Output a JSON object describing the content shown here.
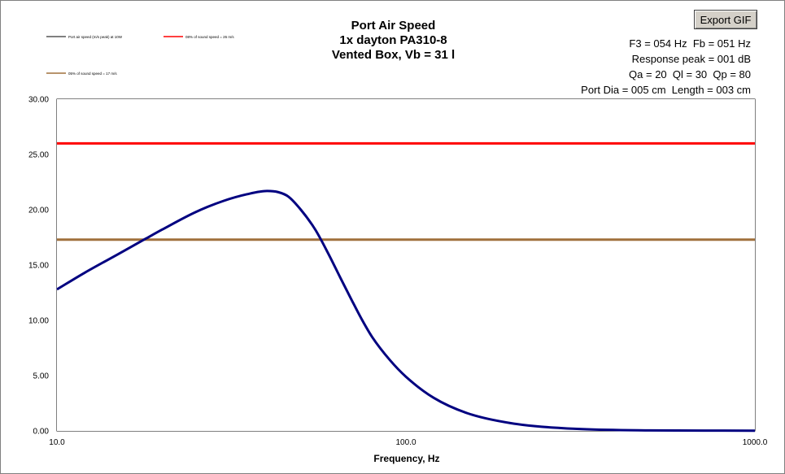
{
  "window": {
    "title_lines": [
      "Port Air Speed",
      "1x dayton PA310-8",
      "Vented Box, Vb = 31 l"
    ],
    "export_button_label": "Export GIF",
    "info_lines": [
      "F3 = 054 Hz  Fb = 051 Hz",
      "Response peak = 001 dB",
      "Qa = 20  Ql = 30  Qp = 80",
      "Port Dia = 005 cm  Length = 003 cm"
    ]
  },
  "chart_data": {
    "type": "line",
    "title": "Port Air Speed",
    "xlabel": "Frequency, Hz",
    "ylabel": "",
    "xscale": "log",
    "xlim": [
      10,
      1000
    ],
    "ylim": [
      0,
      30
    ],
    "xticks": [
      "10.0",
      "100.0",
      "1000.0"
    ],
    "yticks": [
      "0.00",
      "5.00",
      "10.00",
      "15.00",
      "20.00",
      "25.00",
      "30.00"
    ],
    "grid": true,
    "legend_position": "top-left",
    "series": [
      {
        "name": "Port air speed (m/s peak) at 10W",
        "color": "#000080",
        "x": [
          10,
          12,
          15,
          18,
          20,
          25,
          30,
          35,
          40,
          43,
          46,
          50,
          55,
          60,
          65,
          70,
          75,
          80,
          90,
          100,
          120,
          150,
          200,
          300,
          500,
          1000
        ],
        "y": [
          12.8,
          14.3,
          16.0,
          17.4,
          18.2,
          19.8,
          20.8,
          21.4,
          21.7,
          21.6,
          21.2,
          20.0,
          18.2,
          16.0,
          13.8,
          11.8,
          10.0,
          8.5,
          6.4,
          4.9,
          3.0,
          1.6,
          0.7,
          0.2,
          0.05,
          0.02
        ]
      },
      {
        "name": "08% of sound speed = 26 m/s",
        "color": "#ff0000",
        "x": [
          10,
          1000
        ],
        "y": [
          26,
          26
        ]
      },
      {
        "name": "05% of sound speed = 17 m/s",
        "color": "#a0703c",
        "x": [
          10,
          1000
        ],
        "y": [
          17.3,
          17.3
        ]
      }
    ]
  }
}
